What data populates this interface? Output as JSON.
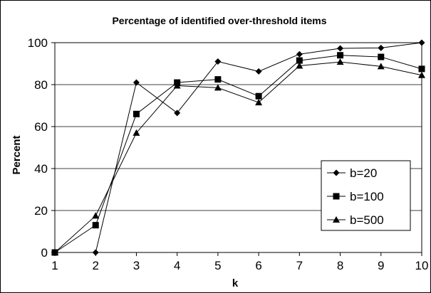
{
  "chart_data": {
    "type": "line",
    "title": "Percentage of identified over-threshold items",
    "xlabel": "k",
    "ylabel": "Percent",
    "x": [
      1,
      2,
      3,
      4,
      5,
      6,
      7,
      8,
      9,
      10
    ],
    "xlim": [
      1,
      10
    ],
    "ylim": [
      0,
      100
    ],
    "yticks": [
      0,
      20,
      40,
      60,
      80,
      100
    ],
    "grid": true,
    "legend_position": "lower-right",
    "series": [
      {
        "name": "b=20",
        "marker": "diamond",
        "values": [
          0,
          0,
          81,
          66.5,
          91,
          86.3,
          94.5,
          97.3,
          97.5,
          100
        ]
      },
      {
        "name": "b=100",
        "marker": "square",
        "values": [
          0,
          13,
          66,
          81,
          82.5,
          74.5,
          91.5,
          94,
          93.2,
          87.5
        ]
      },
      {
        "name": "b=500",
        "marker": "triangle",
        "values": [
          0,
          17.5,
          57,
          79.5,
          78.5,
          71.5,
          89,
          90.8,
          88.7,
          84.5
        ]
      }
    ]
  }
}
